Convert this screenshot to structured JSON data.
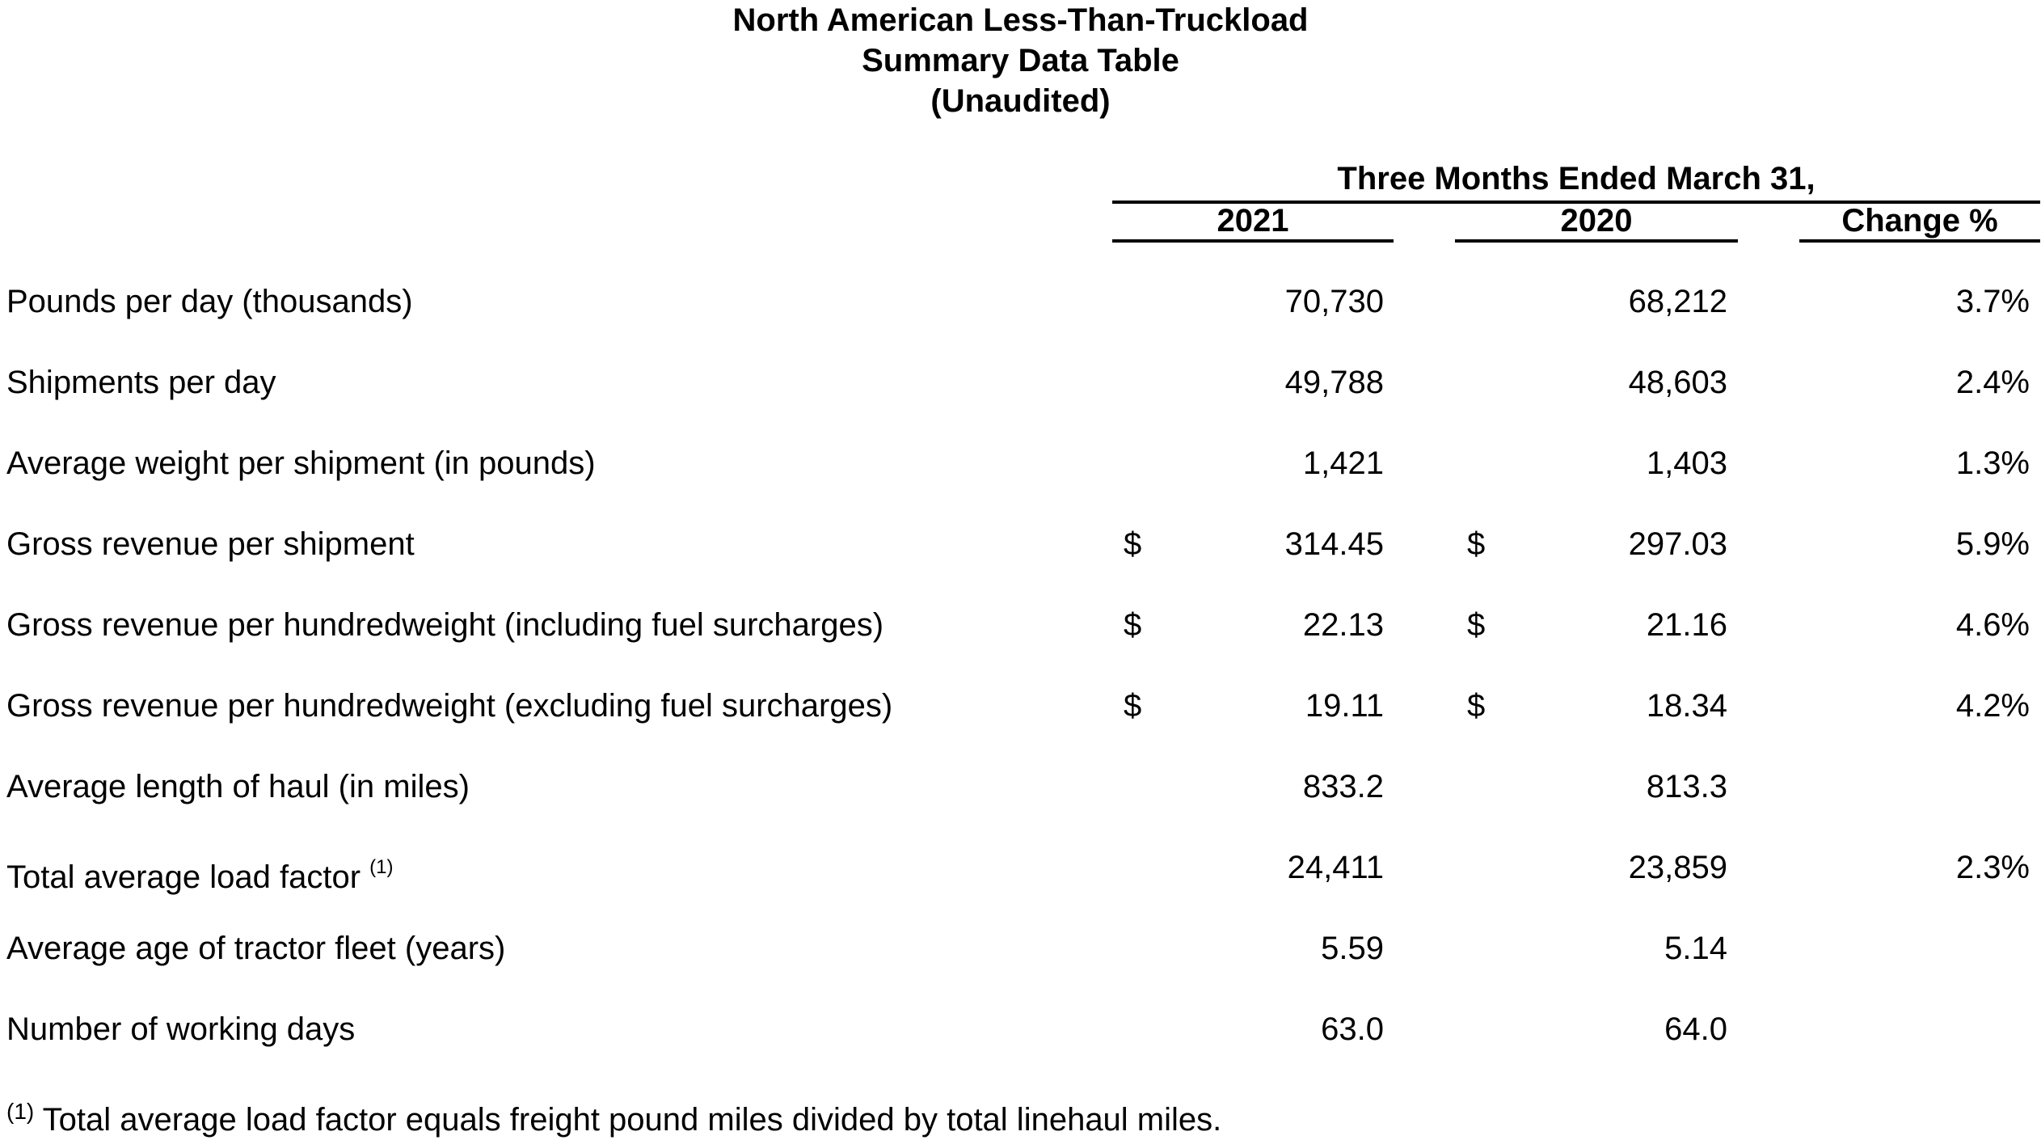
{
  "title": {
    "line1": "North American Less-Than-Truckload",
    "line2": "Summary Data Table",
    "line3": "(Unaudited)"
  },
  "header": {
    "period": "Three Months Ended March 31,",
    "col_2021": "2021",
    "col_2020": "2020",
    "col_change": "Change %"
  },
  "rows": [
    {
      "label": "Pounds per day (thousands)",
      "sup": "",
      "d2021": "",
      "v2021": "70,730",
      "d2020": "",
      "v2020": "68,212",
      "change": "3.7%"
    },
    {
      "label": "Shipments per day",
      "sup": "",
      "d2021": "",
      "v2021": "49,788",
      "d2020": "",
      "v2020": "48,603",
      "change": "2.4%"
    },
    {
      "label": "Average weight per shipment (in pounds)",
      "sup": "",
      "d2021": "",
      "v2021": "1,421",
      "d2020": "",
      "v2020": "1,403",
      "change": "1.3%"
    },
    {
      "label": "Gross revenue per shipment",
      "sup": "",
      "d2021": "$",
      "v2021": "314.45",
      "d2020": "$",
      "v2020": "297.03",
      "change": "5.9%"
    },
    {
      "label": "Gross revenue per hundredweight (including fuel surcharges)",
      "sup": "",
      "d2021": "$",
      "v2021": "22.13",
      "d2020": "$",
      "v2020": "21.16",
      "change": "4.6%"
    },
    {
      "label": "Gross revenue per hundredweight (excluding fuel surcharges)",
      "sup": "",
      "d2021": "$",
      "v2021": "19.11",
      "d2020": "$",
      "v2020": "18.34",
      "change": "4.2%"
    },
    {
      "label": "Average length of haul (in miles)",
      "sup": "",
      "d2021": "",
      "v2021": "833.2",
      "d2020": "",
      "v2020": "813.3",
      "change": ""
    },
    {
      "label": "Total average load factor ",
      "sup": "(1)",
      "d2021": "",
      "v2021": "24,411",
      "d2020": "",
      "v2020": "23,859",
      "change": "2.3%"
    },
    {
      "label": "Average age of tractor fleet (years)",
      "sup": "",
      "d2021": "",
      "v2021": "5.59",
      "d2020": "",
      "v2020": "5.14",
      "change": ""
    },
    {
      "label": "Number of working days",
      "sup": "",
      "d2021": "",
      "v2021": "63.0",
      "d2020": "",
      "v2020": "64.0",
      "change": ""
    }
  ],
  "footnote": {
    "marker": "(1)",
    "text": " Total average load factor equals freight pound miles divided by total linehaul miles."
  }
}
